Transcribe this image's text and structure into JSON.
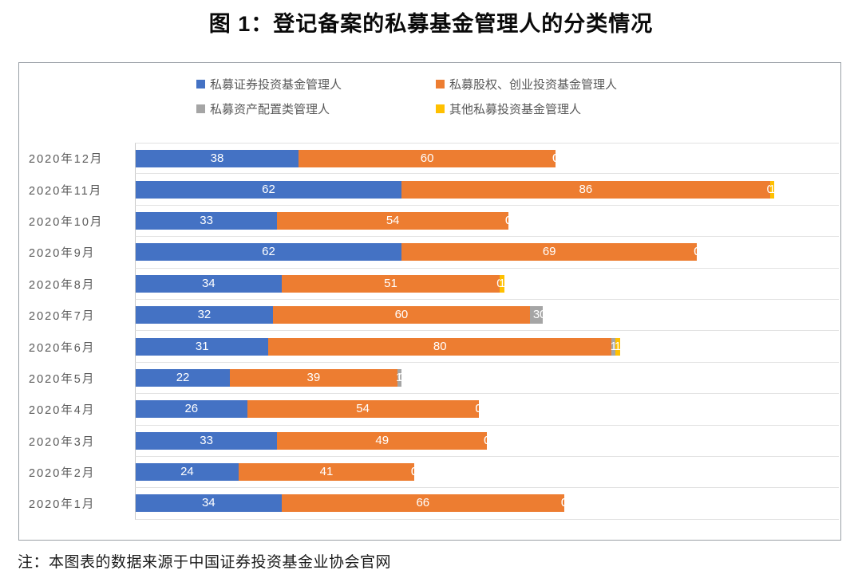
{
  "title": "图 1：登记备案的私募基金管理人的分类情况",
  "note": "注：本图表的数据来源于中国证券投资基金业协会官网",
  "colors": {
    "securities": "#4472C4",
    "equity_vc": "#ED7D31",
    "asset_allocation": "#A5A5A5",
    "other": "#FFC000",
    "gridline": "#e2e2e2"
  },
  "chart_data": {
    "type": "bar",
    "orientation": "horizontal",
    "stacked": true,
    "grid": "category-separators",
    "legend_position": "top",
    "data_labels": "white, centered in each segment",
    "categories": [
      "2020年12月",
      "2020年11月",
      "2020年10月",
      "2020年9月",
      "2020年8月",
      "2020年7月",
      "2020年6月",
      "2020年5月",
      "2020年4月",
      "2020年3月",
      "2020年2月",
      "2020年1月"
    ],
    "series": [
      {
        "name": "私募证券投资基金管理人",
        "color": "#4472C4",
        "values": [
          38,
          62,
          33,
          62,
          34,
          32,
          31,
          22,
          26,
          33,
          24,
          34
        ]
      },
      {
        "name": "私募股权、创业投资基金管理人",
        "color": "#ED7D31",
        "values": [
          60,
          86,
          54,
          69,
          51,
          60,
          80,
          39,
          54,
          49,
          41,
          66
        ]
      },
      {
        "name": "私募资产配置类管理人",
        "color": "#A5A5A5",
        "values": [
          0,
          0,
          0,
          0,
          0,
          3,
          1,
          1,
          0,
          0,
          0,
          0
        ]
      },
      {
        "name": "其他私募投资基金管理人",
        "color": "#FFC000",
        "values": [
          0,
          1,
          0,
          0,
          1,
          0,
          1,
          0,
          0,
          0,
          0,
          0
        ]
      }
    ],
    "x_axis": {
      "min": 0,
      "implied_max": 164,
      "ticks_visible": false
    }
  }
}
